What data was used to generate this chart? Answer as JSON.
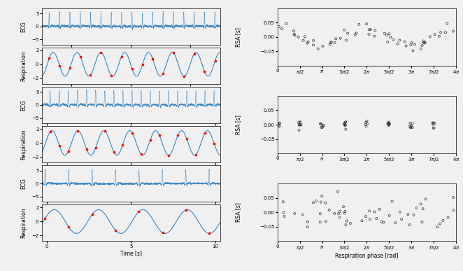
{
  "ecg_color": "#2277bb",
  "resp_color": "#2277bb",
  "dot_color": "red",
  "scatter_facecolor": "none",
  "scatter_edgecolor": "#333333",
  "fig_bg": "#f0f0f0",
  "ecg1_xlim": [
    -2.5,
    12.5
  ],
  "ecg1_ylim": [
    -7,
    7
  ],
  "ecg1_yticks": [
    -5,
    0,
    5
  ],
  "ecg1_xticks": [
    0,
    5,
    10
  ],
  "resp1_xlim": [
    -2.5,
    12.5
  ],
  "resp1_ylim": [
    -2.8,
    2.4
  ],
  "resp1_yticks": [
    -2,
    0,
    2
  ],
  "resp1_xticks": [
    0,
    5,
    10
  ],
  "ecg2_xlim": [
    -0.3,
    10.3
  ],
  "ecg2_ylim": [
    -7,
    7
  ],
  "ecg2_yticks": [
    -5,
    0,
    5
  ],
  "ecg2_xticks": [
    0,
    5,
    10
  ],
  "resp2_xlim": [
    -0.3,
    10.3
  ],
  "resp2_ylim": [
    -2.8,
    2.4
  ],
  "resp2_yticks": [
    -2,
    0,
    2
  ],
  "resp2_xticks": [
    0,
    5,
    10
  ],
  "ecg3_xlim": [
    -0.3,
    10.3
  ],
  "ecg3_ylim": [
    -7,
    7
  ],
  "ecg3_yticks": [
    -5,
    0,
    5
  ],
  "ecg3_xticks": [
    0,
    5,
    10
  ],
  "resp3_xlim": [
    -0.3,
    10.3
  ],
  "resp3_ylim": [
    -2.8,
    2.4
  ],
  "resp3_yticks": [
    -2,
    0,
    2
  ],
  "resp3_xticks": [
    0,
    5,
    10
  ],
  "rsa_ylim": [
    -0.1,
    0.1
  ],
  "rsa_yticks": [
    -0.05,
    0,
    0.05
  ],
  "rsa_xlim": [
    0,
    12.566
  ],
  "pi": 3.14159265358979,
  "xlabel_left": "Time [s]",
  "xlabel_right": "Respiration phase [rad]",
  "ylabel_ecg": "ECG",
  "ylabel_resp": "Respiration",
  "ylabel_rsa": "RSA [s]",
  "resp1_freq": 0.5,
  "resp2_freq": 0.65,
  "resp3_freq": 0.38,
  "ecg1_hr": 1.15,
  "ecg2_hr": 1.85,
  "ecg3_hr": 0.72
}
